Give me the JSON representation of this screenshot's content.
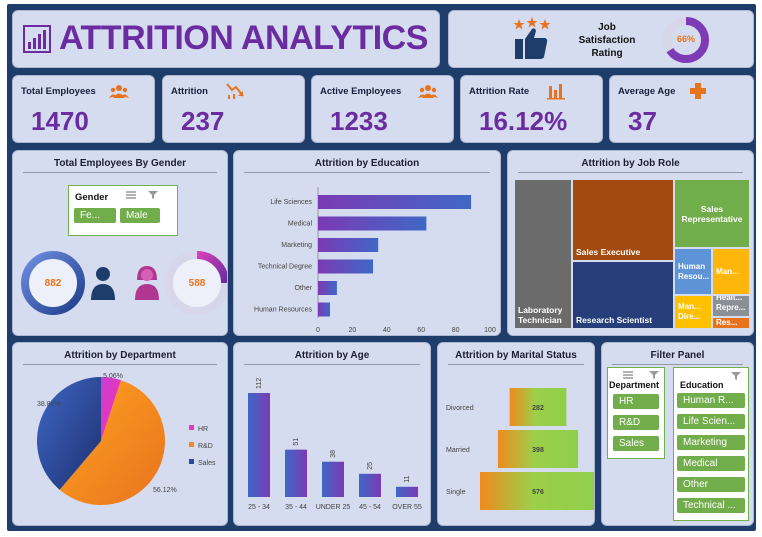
{
  "header": {
    "title": "ATTRITION ANALYTICS"
  },
  "job_satisfaction": {
    "label_line1": "Job",
    "label_line2": "Satisfaction",
    "label_line3": "Rating",
    "percent_text": "66%",
    "percent_value": 66
  },
  "kpis": [
    {
      "label": "Total Employees",
      "value": "1470",
      "icon": "people-group-icon"
    },
    {
      "label": "Attrition",
      "value": "237",
      "icon": "downtrend-chart-icon"
    },
    {
      "label": "Active Employees",
      "value": "1233",
      "icon": "people-group-icon"
    },
    {
      "label": "Attrition Rate",
      "value": "16.12%",
      "icon": "bar-chart-icon"
    },
    {
      "label": "Average Age",
      "value": "37",
      "icon": "plus-icon"
    }
  ],
  "gender_card": {
    "title": "Total Employees By Gender",
    "slicer_title": "Gender",
    "options": [
      "Fe...",
      "Male"
    ],
    "male_value": "882",
    "female_value": "588"
  },
  "colors": {
    "purple": "#6a2ca0",
    "orange": "#e8731f",
    "green": "#72ad4b",
    "navy": "#1e3d6b",
    "magenta": "#d63fb8",
    "blue": "#3f68c6"
  },
  "chart_data": [
    {
      "type": "bar",
      "orientation": "horizontal",
      "title": "Attrition by Education",
      "categories": [
        "Life Sciences",
        "Medical",
        "Marketing",
        "Technical Degree",
        "Other",
        "Human Resources"
      ],
      "values": [
        89,
        63,
        35,
        32,
        11,
        7
      ],
      "xlim": [
        0,
        100
      ],
      "xticks": [
        "0",
        "20",
        "40",
        "60",
        "80",
        "100"
      ]
    },
    {
      "type": "heatmap",
      "subtype": "treemap",
      "title": "Attrition by Job Role",
      "categories": [
        "Laboratory Technician",
        "Sales Executive",
        "Research Scientist",
        "Sales Representative",
        "Human Resources",
        "Manager",
        "Manufacturing Director",
        "Healthcare Representative",
        "Research Director"
      ],
      "labels": [
        "Laboratory Technician",
        "Sales Executive",
        "Research Scientist",
        "Sales Representative",
        "Human Resou...",
        "Man...",
        "Man... Dire...",
        "Healt... Repre...",
        "Res..."
      ],
      "values": [
        62,
        57,
        47,
        33,
        12,
        5,
        10,
        9,
        2
      ]
    },
    {
      "type": "pie",
      "title": "Attrition by Department",
      "categories": [
        "HR",
        "R&D",
        "Sales"
      ],
      "values": [
        5.06,
        56.12,
        38.82
      ],
      "value_labels": [
        "5.06%",
        "56.12%",
        "38.82%"
      ],
      "legend": "right"
    },
    {
      "type": "bar",
      "title": "Attrition by Age",
      "categories": [
        "25 - 34",
        "35 - 44",
        "UNDER 25",
        "45 - 54",
        "OVER 55"
      ],
      "values": [
        112,
        51,
        38,
        25,
        11
      ]
    },
    {
      "type": "bar",
      "subtype": "funnel",
      "title": "Attrition by Marital Status",
      "categories": [
        "Divorced",
        "Married",
        "Single"
      ],
      "values": [
        282,
        398,
        576
      ]
    }
  ],
  "filter_panel": {
    "title": "Filter Panel",
    "department": {
      "title": "Department",
      "options": [
        "HR",
        "R&D",
        "Sales"
      ]
    },
    "education": {
      "title": "Education",
      "options": [
        "Human R...",
        "Life Scien...",
        "Marketing",
        "Medical",
        "Other",
        "Technical ..."
      ]
    }
  }
}
